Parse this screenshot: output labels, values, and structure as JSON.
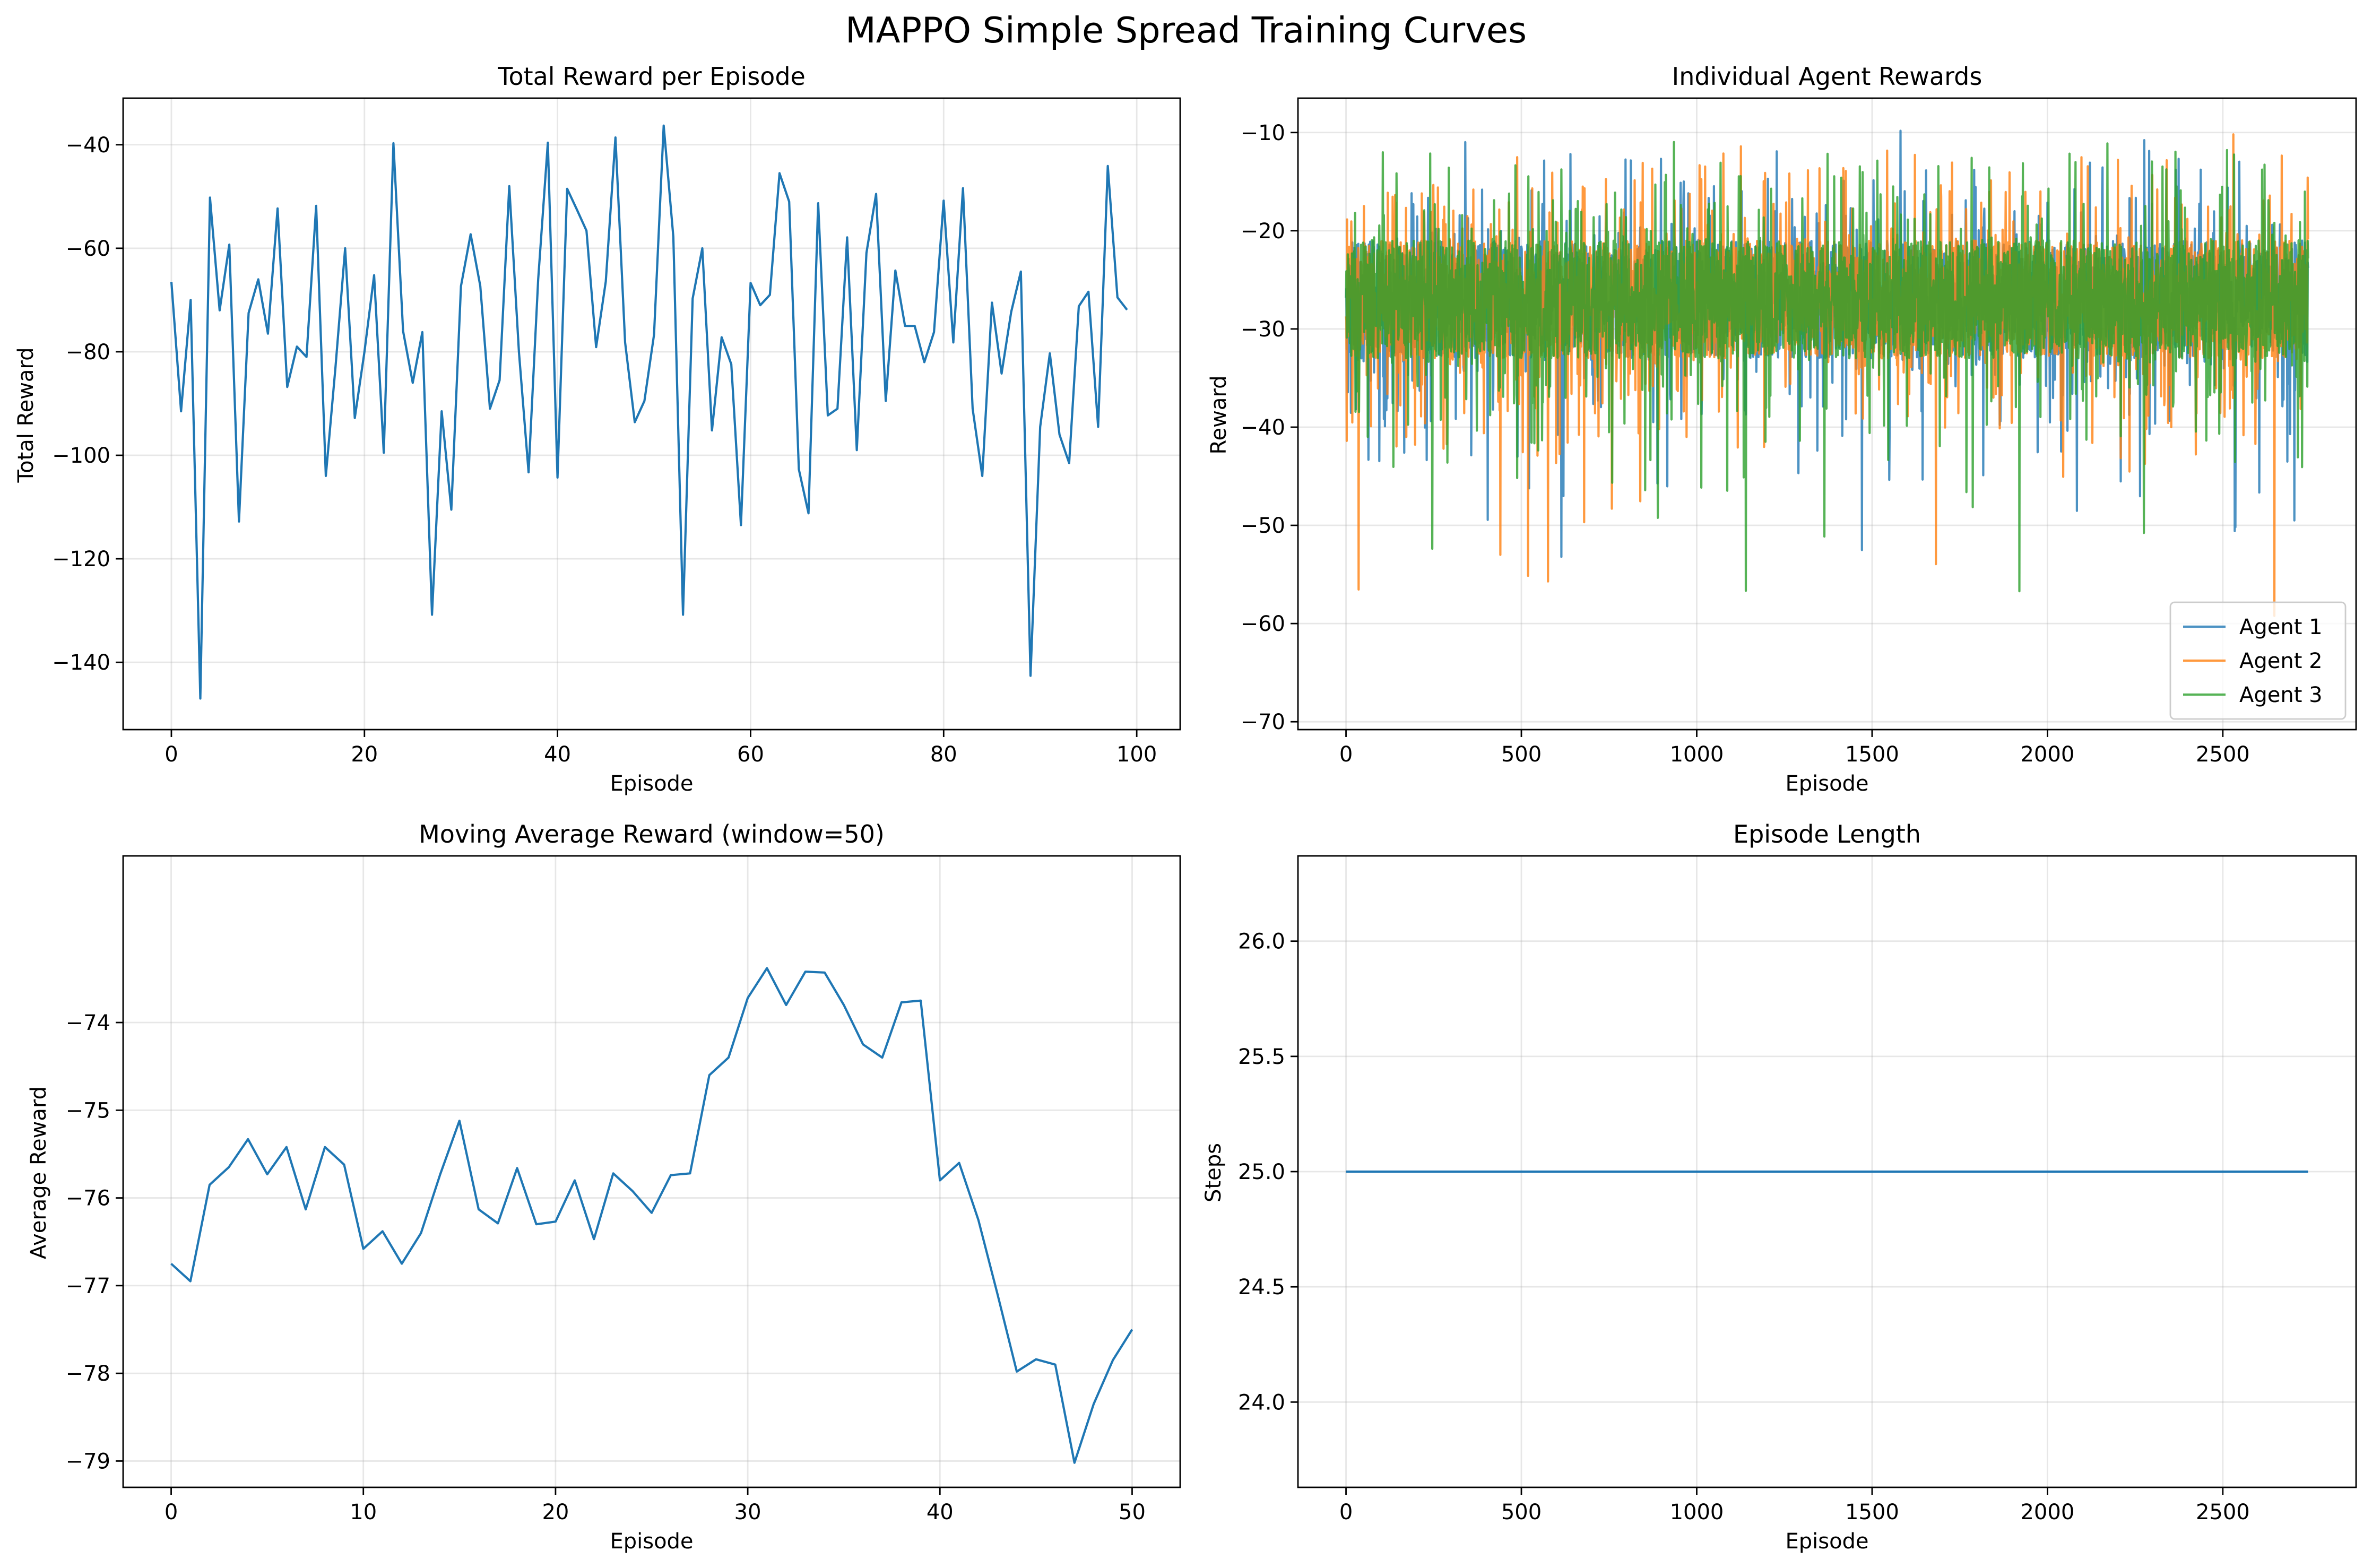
{
  "figure": {
    "title": "MAPPO Simple Spread Training Curves"
  },
  "chart_data": [
    {
      "id": "total",
      "type": "line",
      "title": "Total Reward per Episode",
      "xlabel": "Episode",
      "ylabel": "Total Reward",
      "xlim": [
        -5,
        104.5
      ],
      "ylim": [
        -153,
        -31
      ],
      "xticks": [
        0,
        20,
        40,
        60,
        80,
        100
      ],
      "yticks": [
        -140,
        -120,
        -100,
        -80,
        -60,
        -40
      ],
      "grid": true,
      "series": [
        {
          "color": "#1f77b4",
          "values": [
            -66.5,
            -91.5,
            -70,
            -147,
            -50.2,
            -72,
            -59.3,
            -112.8,
            -72.5,
            -66,
            -76.5,
            -52.3,
            -86.8,
            -79,
            -81,
            -51.8,
            -104,
            -83,
            -60,
            -92.8,
            -80,
            -65.2,
            -99.5,
            -39.7,
            -76,
            -86,
            -76.2,
            -130.8,
            -91.5,
            -110.5,
            -67.3,
            -57.3,
            -67.3,
            -91,
            -85.5,
            -48,
            -80,
            -103.3,
            -66,
            -39.6,
            -104.3,
            -48.5,
            -52.5,
            -56.6,
            -79.1,
            -66.4,
            -38.6,
            -78.2,
            -93.6,
            -89.5,
            -76.7,
            -36.3,
            -57.8,
            -130.8,
            -69.7,
            -60,
            -95.2,
            -77.2,
            -82.4,
            -113.5,
            -66.7,
            -71,
            -69,
            -45.5,
            -51,
            -102.7,
            -111.2,
            -51.3,
            -92.3,
            -91,
            -57.9,
            -99,
            -60.9,
            -49.5,
            -89.5,
            -64.3,
            -75,
            -75,
            -82,
            -76.2,
            -50.8,
            -78.2,
            -48.4,
            -91,
            -104,
            -70.5,
            -84.2,
            -72.3,
            -64.5,
            -142.6,
            -94.5,
            -80.3,
            -96,
            -101.5,
            -71.2,
            -68.4,
            -94.5,
            -44.1,
            -69.5,
            -71.9
          ]
        }
      ]
    },
    {
      "id": "agents",
      "type": "line",
      "title": "Individual Agent Rewards",
      "xlabel": "Episode",
      "ylabel": "Reward",
      "xlim": [
        -137,
        2880
      ],
      "ylim": [
        -70.8,
        -6.5
      ],
      "xticks": [
        0,
        500,
        1000,
        1500,
        2000,
        2500
      ],
      "yticks": [
        -70,
        -60,
        -50,
        -40,
        -30,
        -20,
        -10
      ],
      "grid": true,
      "legend": "lower right",
      "n_points": 2744,
      "series": [
        {
          "name": "Agent 1",
          "color": "#1f77b4",
          "opacity": 0.8,
          "mean": -27,
          "spread": 6,
          "seed": 11
        },
        {
          "name": "Agent 2",
          "color": "#ff7f0e",
          "opacity": 0.8,
          "mean": -27,
          "spread": 6,
          "seed": 23
        },
        {
          "name": "Agent 3",
          "color": "#2ca02c",
          "opacity": 0.8,
          "mean": -27,
          "spread": 6,
          "seed": 37
        }
      ]
    },
    {
      "id": "moving",
      "type": "line",
      "title": "Moving Average Reward (window=50)",
      "xlabel": "Episode",
      "ylabel": "Average Reward",
      "xlim": [
        -2.5,
        52.5
      ],
      "ylim": [
        -79.3,
        -72.1
      ],
      "xticks": [
        0,
        10,
        20,
        30,
        40,
        50
      ],
      "yticks": [
        -79,
        -78,
        -77,
        -76,
        -75,
        -74
      ],
      "grid": true,
      "series": [
        {
          "color": "#1f77b4",
          "values": [
            -76.75,
            -76.95,
            -75.85,
            -75.65,
            -75.33,
            -75.73,
            -75.42,
            -76.13,
            -75.42,
            -75.62,
            -76.58,
            -76.38,
            -76.75,
            -76.4,
            -75.73,
            -75.12,
            -76.13,
            -76.29,
            -75.66,
            -76.3,
            -76.27,
            -75.8,
            -76.47,
            -75.72,
            -75.92,
            -76.17,
            -75.74,
            -75.72,
            -74.6,
            -74.4,
            -73.72,
            -73.38,
            -73.8,
            -73.42,
            -73.43,
            -73.8,
            -74.25,
            -74.4,
            -73.77,
            -73.75,
            -75.8,
            -75.6,
            -76.25,
            -77.1,
            -77.98,
            -77.84,
            -77.9,
            -79.02,
            -78.35,
            -77.85,
            -77.5
          ]
        }
      ]
    },
    {
      "id": "length",
      "type": "line",
      "title": "Episode Length",
      "xlabel": "Episode",
      "ylabel": "Steps",
      "xlim": [
        -137,
        2880
      ],
      "ylim": [
        23.63,
        26.37
      ],
      "xticks": [
        0,
        500,
        1000,
        1500,
        2000,
        2500
      ],
      "ytick_labels": [
        "24.0",
        "24.5",
        "25.0",
        "25.5",
        "26.0"
      ],
      "yticks": [
        24.0,
        24.5,
        25.0,
        25.5,
        26.0
      ],
      "grid": true,
      "series": [
        {
          "color": "#1f77b4",
          "x": [
            0,
            2743
          ],
          "values": [
            25,
            25
          ]
        }
      ]
    }
  ]
}
